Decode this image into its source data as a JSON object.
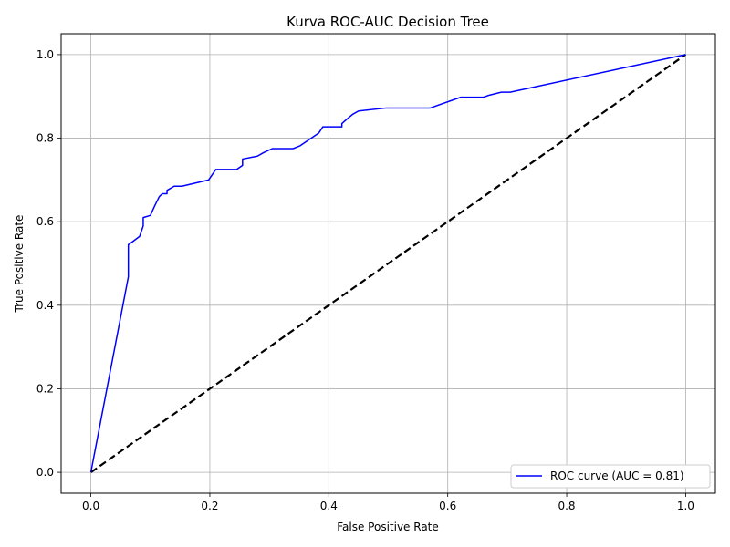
{
  "chart_data": {
    "type": "line",
    "title": "Kurva ROC-AUC Decision Tree",
    "xlabel": "False Positive Rate",
    "ylabel": "True Positive Rate",
    "xlim": [
      -0.05,
      1.05
    ],
    "ylim": [
      -0.05,
      1.05
    ],
    "xticks": [
      0.0,
      0.2,
      0.4,
      0.6,
      0.8,
      1.0
    ],
    "yticks": [
      0.0,
      0.2,
      0.4,
      0.6,
      0.8,
      1.0
    ],
    "xtick_labels": [
      "0.0",
      "0.2",
      "0.4",
      "0.6",
      "0.8",
      "1.0"
    ],
    "ytick_labels": [
      "0.0",
      "0.2",
      "0.4",
      "0.6",
      "0.8",
      "1.0"
    ],
    "grid": true,
    "legend_position": "lower-right",
    "series": [
      {
        "name": "ROC curve (AUC = 0.81)",
        "color": "#0000ff",
        "style": "solid",
        "x": [
          0.0,
          0.063,
          0.063,
          0.068,
          0.082,
          0.088,
          0.088,
          0.1,
          0.108,
          0.115,
          0.12,
          0.128,
          0.128,
          0.14,
          0.153,
          0.198,
          0.21,
          0.245,
          0.255,
          0.255,
          0.28,
          0.29,
          0.305,
          0.34,
          0.352,
          0.383,
          0.39,
          0.422,
          0.422,
          0.43,
          0.44,
          0.45,
          0.495,
          0.57,
          0.622,
          0.66,
          0.67,
          0.69,
          0.705,
          1.0
        ],
        "y": [
          0.0,
          0.468,
          0.545,
          0.55,
          0.565,
          0.59,
          0.61,
          0.615,
          0.64,
          0.66,
          0.667,
          0.667,
          0.675,
          0.685,
          0.685,
          0.7,
          0.725,
          0.725,
          0.735,
          0.75,
          0.757,
          0.765,
          0.775,
          0.775,
          0.782,
          0.812,
          0.827,
          0.827,
          0.835,
          0.845,
          0.857,
          0.865,
          0.872,
          0.872,
          0.898,
          0.898,
          0.903,
          0.91,
          0.91,
          1.0
        ]
      },
      {
        "name": "",
        "color": "#000000",
        "style": "dashed",
        "x": [
          0.0,
          1.0
        ],
        "y": [
          0.0,
          1.0
        ]
      }
    ]
  }
}
